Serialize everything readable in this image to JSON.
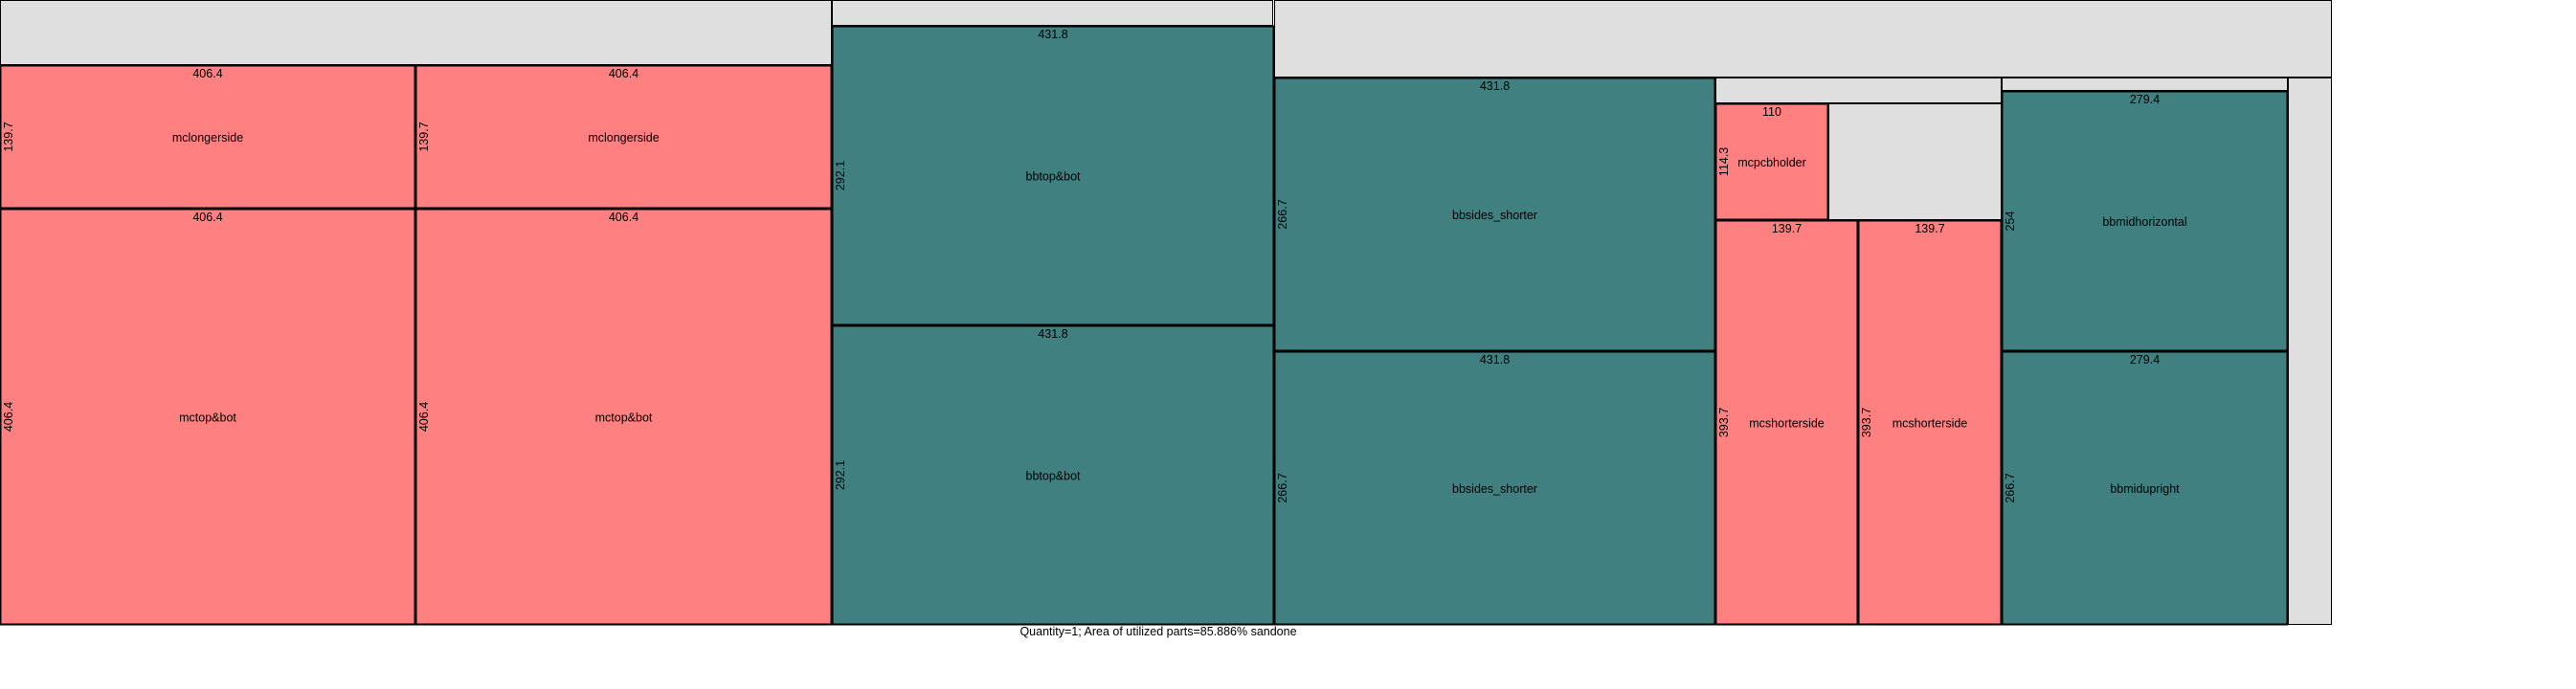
{
  "colors": {
    "waste": "#dfdfdf",
    "mc_part": "#ff8080",
    "bb_part": "#408080",
    "stroke": "#000000"
  },
  "caption": "Quantity=1; Area of utilized parts=85.886%  sandone",
  "parts": [
    {
      "name": "mclongerside",
      "width_label": "406.4",
      "height_label": "139.7",
      "kind": "mc"
    },
    {
      "name": "mclongerside",
      "width_label": "406.4",
      "height_label": "139.7",
      "kind": "mc"
    },
    {
      "name": "mctop&bot",
      "width_label": "406.4",
      "height_label": "406.4",
      "kind": "mc"
    },
    {
      "name": "mctop&bot",
      "width_label": "406.4",
      "height_label": "406.4",
      "kind": "mc"
    },
    {
      "name": "bbtop&bot",
      "width_label": "431.8",
      "height_label": "292.1",
      "kind": "bb"
    },
    {
      "name": "bbtop&bot",
      "width_label": "431.8",
      "height_label": "292.1",
      "kind": "bb"
    },
    {
      "name": "bbsides_shorter",
      "width_label": "431.8",
      "height_label": "266.7",
      "kind": "bb"
    },
    {
      "name": "bbsides_shorter",
      "width_label": "431.8",
      "height_label": "266.7",
      "kind": "bb"
    },
    {
      "name": "mcpcbholder",
      "width_label": "110",
      "height_label": "114.3",
      "kind": "mc"
    },
    {
      "name": "mcshorterside",
      "width_label": "139.7",
      "height_label": "393.7",
      "kind": "mc"
    },
    {
      "name": "mcshorterside",
      "width_label": "139.7",
      "height_label": "393.7",
      "kind": "mc"
    },
    {
      "name": "bbmidhorizontal",
      "width_label": "279.4",
      "height_label": "254",
      "kind": "bb"
    },
    {
      "name": "bbmidupright",
      "width_label": "279.4",
      "height_label": "266.7",
      "kind": "bb"
    }
  ]
}
